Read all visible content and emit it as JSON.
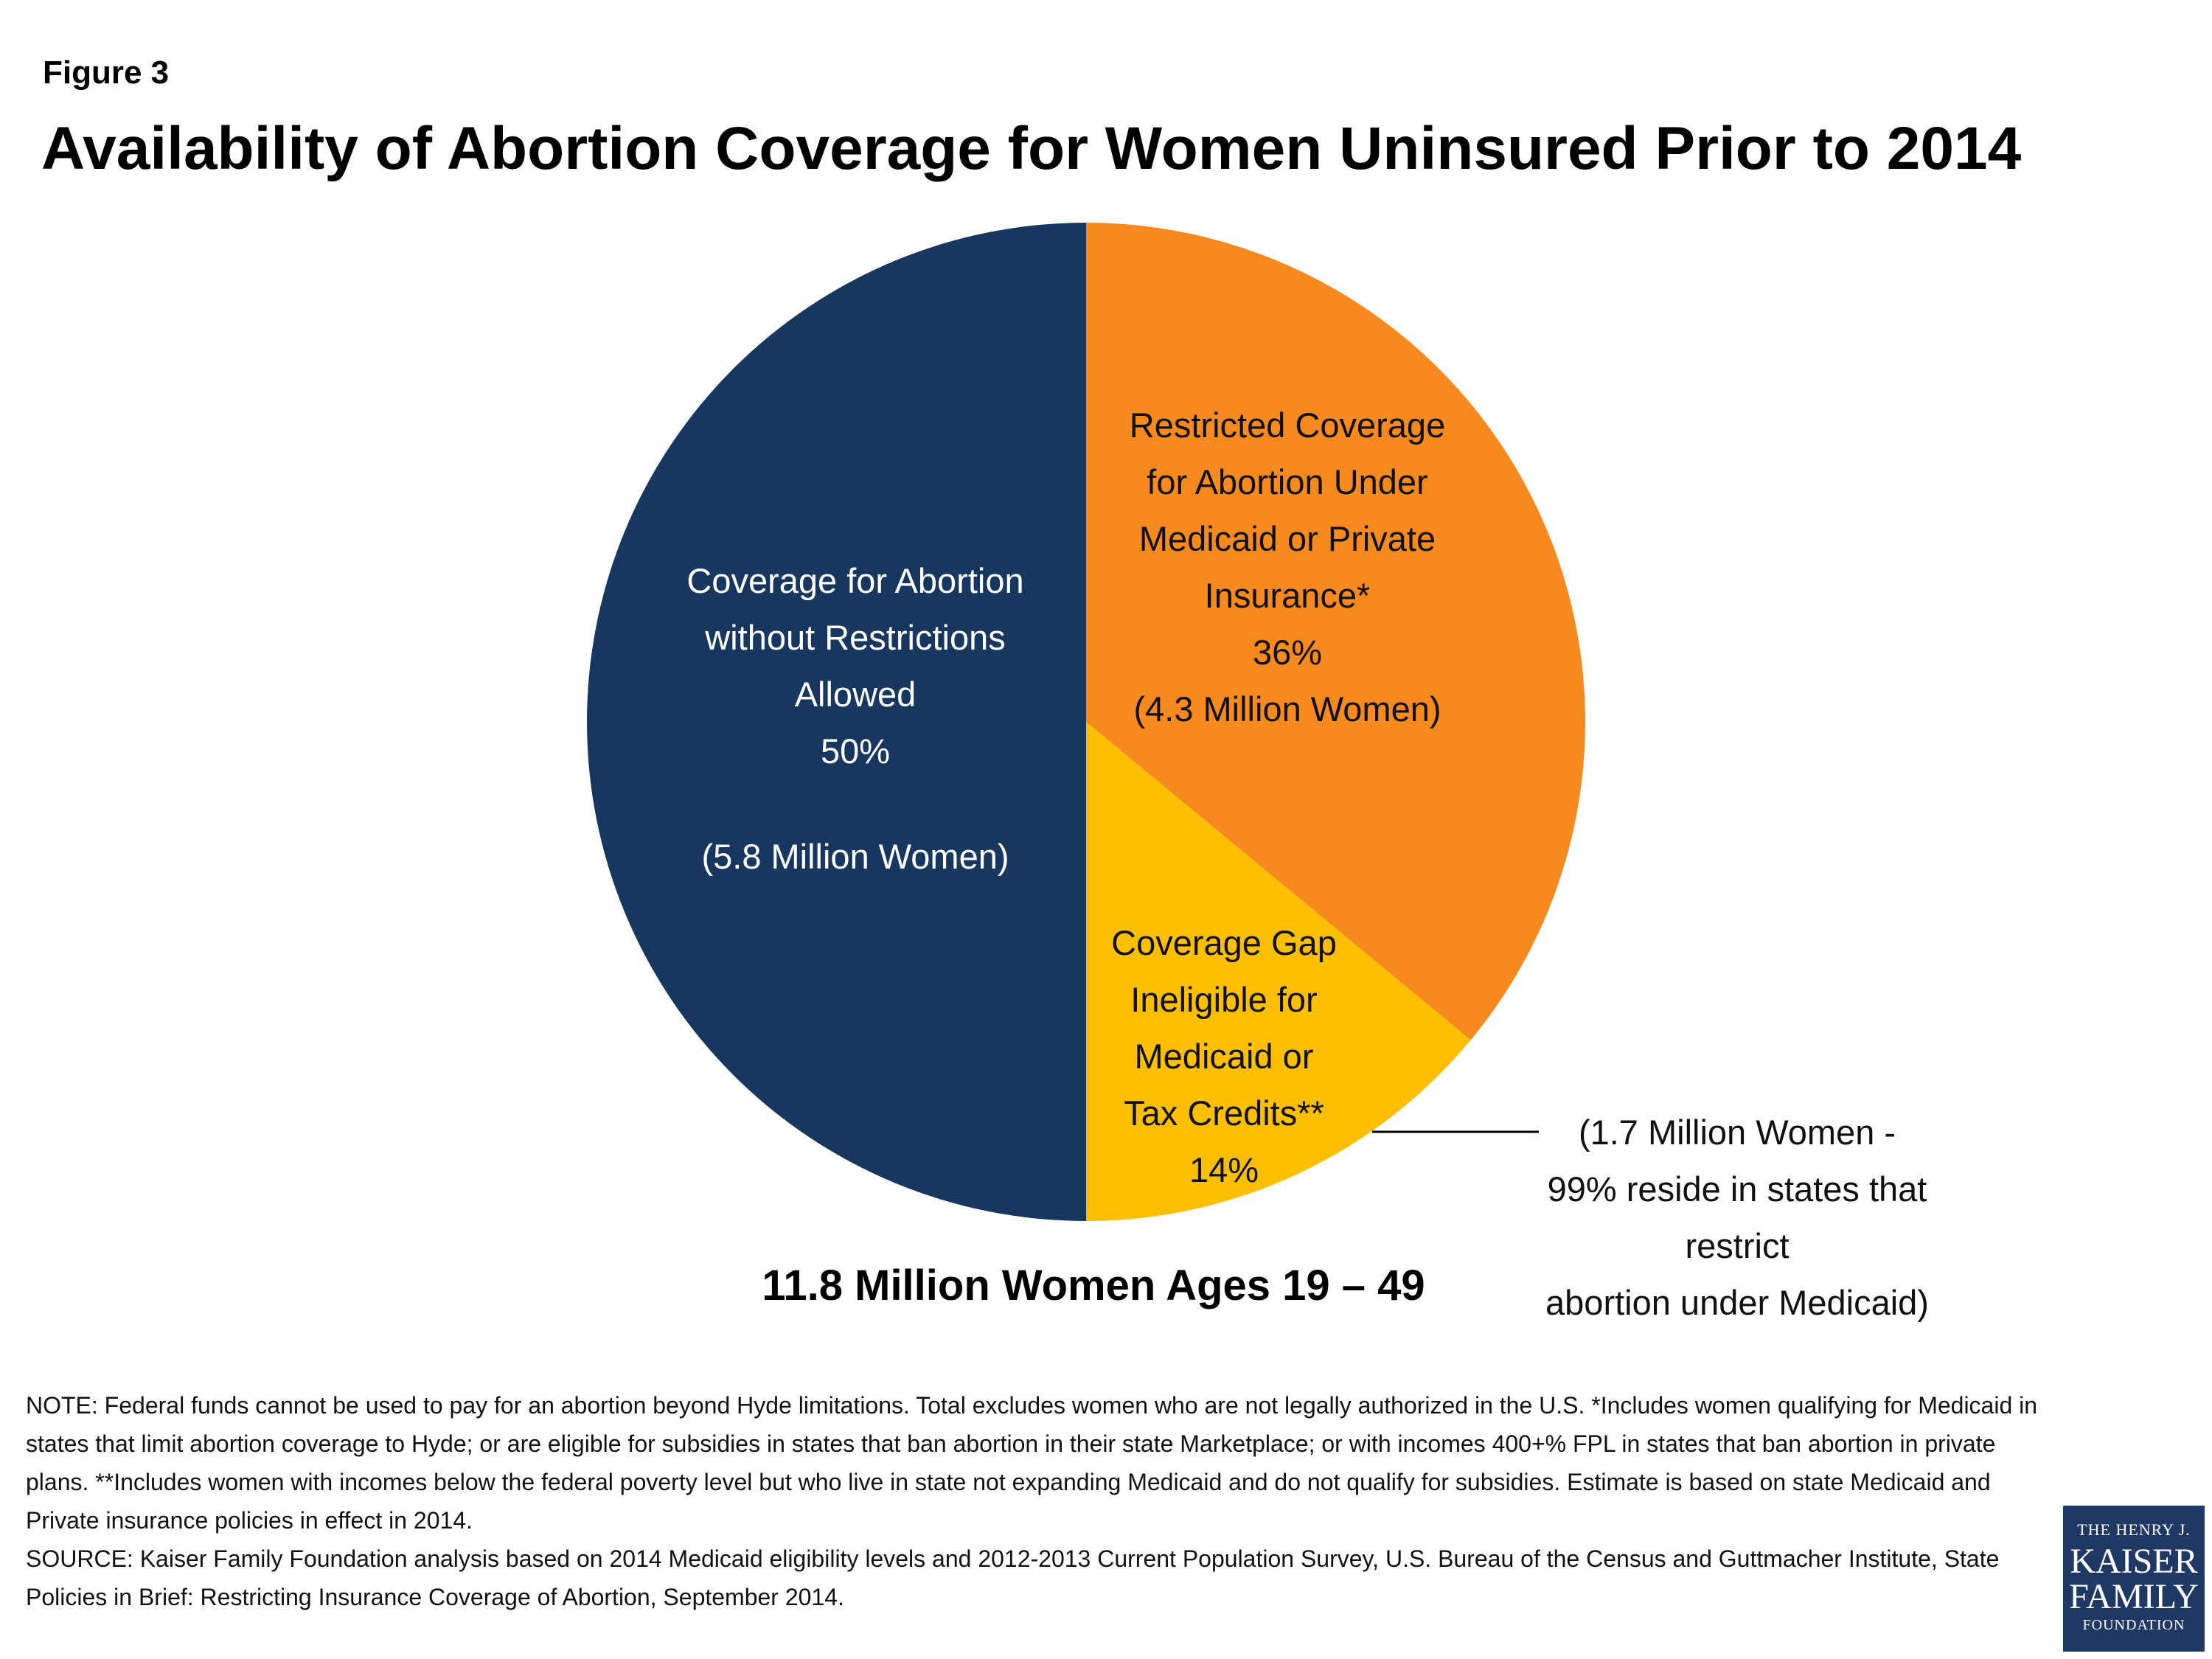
{
  "chart_data": {
    "type": "pie",
    "label": "Figure 3",
    "title": "Availability of Abortion Coverage for Women Uninsured Prior to 2014",
    "subtitle": "11.8 Million Women Ages 19 – 49",
    "categories": [
      "Restricted Coverage\nfor Abortion Under\nMedicaid or Private\nInsurance*",
      "Coverage  Gap\nIneligible for\nMedicaid or\nTax Credits**",
      "Coverage for Abortion\nwithout Restrictions\nAllowed"
    ],
    "values": [
      36,
      14,
      50
    ],
    "value_labels": [
      "36%",
      "14%",
      "50%"
    ],
    "counts": [
      "(4.3 Million Women)",
      "(1.7 Million Women -\n99% reside in states that restrict\nabortion under Medicaid)",
      "(5.8 Million Women)"
    ],
    "colors": [
      "#f68a1e",
      "#fdbf00",
      "#17375e"
    ],
    "text_colors": [
      "#111111",
      "#111111",
      "#ffffff"
    ],
    "note": "NOTE: Federal funds cannot be used to pay for an abortion beyond Hyde limitations. Total excludes women who are not legally authorized in the U.S. *Includes women qualifying for Medicaid in states that limit abortion coverage to Hyde; or are eligible for subsidies in states that ban abortion in their state Marketplace; or with incomes 400+% FPL in states that ban abortion in private plans. **Includes women with incomes below the federal poverty level but who live in state not expanding Medicaid and do not qualify for subsidies. Estimate is based on state Medicaid and Private insurance policies in effect in 2014.",
    "source": "SOURCE: Kaiser Family Foundation analysis based on 2014 Medicaid eligibility levels and 2012-2013 Current Population Survey, U.S. Bureau of the Census and  Guttmacher Institute, State Policies in Brief: Restricting Insurance Coverage of Abortion, September 2014.",
    "logo": [
      "THE HENRY J.",
      "KAISER",
      "FAMILY",
      "FOUNDATION"
    ]
  }
}
